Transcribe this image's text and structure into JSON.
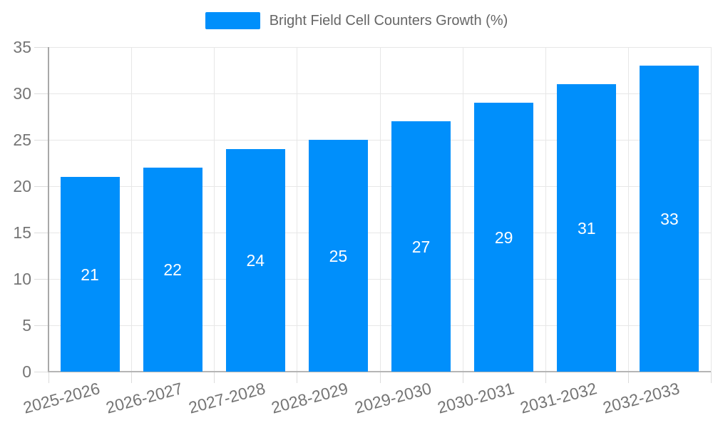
{
  "chart_data": {
    "type": "bar",
    "title": "Bright Field Cell Counters Growth (%)",
    "categories": [
      "2025-2026",
      "2026-2027",
      "2027-2028",
      "2028-2029",
      "2029-2030",
      "2030-2031",
      "2031-2032",
      "2032-2033"
    ],
    "values": [
      21,
      22,
      24,
      25,
      27,
      29,
      31,
      33
    ],
    "ylim": [
      0,
      35
    ],
    "yticks": [
      0,
      5,
      10,
      15,
      20,
      25,
      30,
      35
    ],
    "xlabel": "",
    "ylabel": "",
    "legend_position": "top",
    "grid": true,
    "data_labels_inside_bars": true,
    "colors": {
      "bar": "#008FFB",
      "data_label": "#ffffff",
      "axis_label": "#757575",
      "legend_label": "#666666",
      "gridline": "#e7e7e7",
      "axis_line": "#a8a8a8"
    }
  }
}
